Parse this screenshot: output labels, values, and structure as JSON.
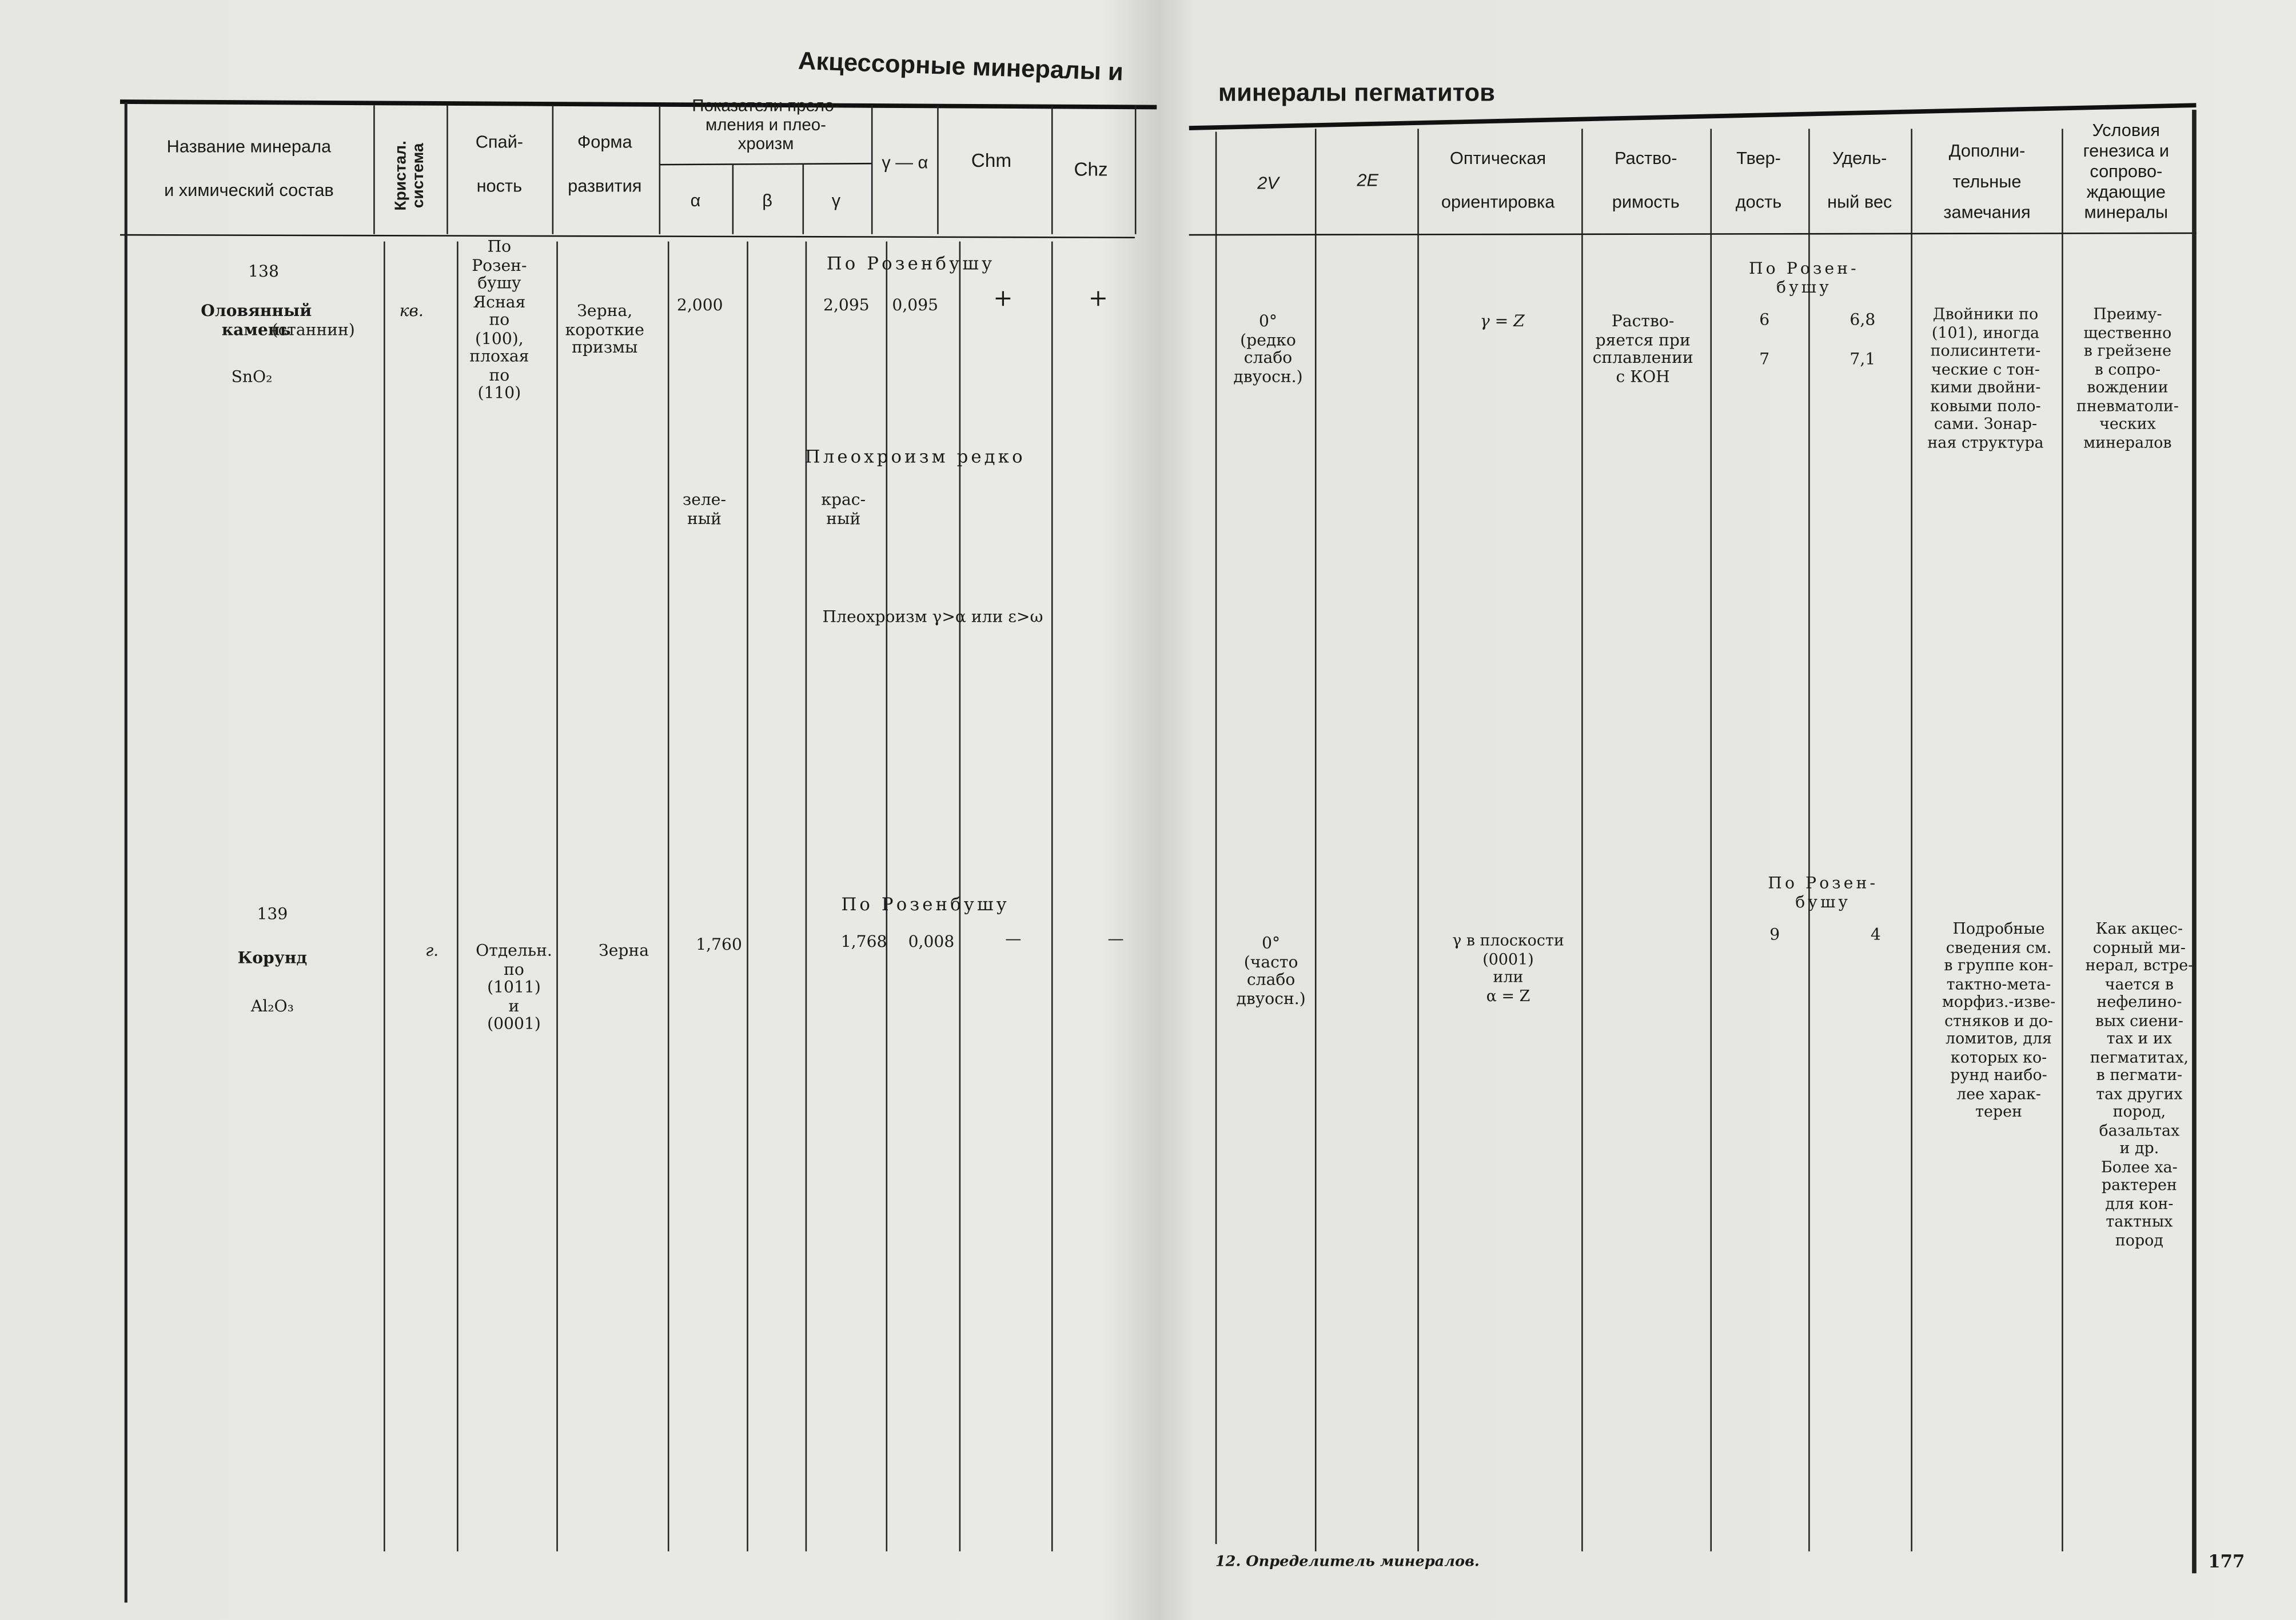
{
  "left_page": {
    "title": "Акцессорные минералы и",
    "headers": {
      "name": "Название минерала\n\nи химический состав",
      "crystal_system": "Кристал.\nсистема",
      "cleavage": "Спай-\n\nность",
      "habit": "Форма\n\nразвития",
      "refraction_group": "Показатели прело-\nмления и плео-\nхроизм",
      "alpha": "α",
      "beta": "β",
      "gamma": "γ",
      "birefringence": "γ — α",
      "chm": "Chm",
      "chz": "Chz"
    },
    "rows": [
      {
        "number": "138",
        "name": "Оловянный\nкамень",
        "name_alt": "(станнин)",
        "formula": "SnO₂",
        "system": "кв.",
        "cleavage": "По\nРозен-\nбушу\nЯсная\nпо\n(100),\nплохая\nпо\n(110)",
        "habit": "Зерна,\nкороткие\nпризмы",
        "source_note": "По Розенбушу",
        "alpha": "2,000",
        "gamma": "2,095",
        "birefringence": "0,095",
        "chm": "+",
        "chz": "+",
        "pleochroism_note": "Плеохроизм редко",
        "pleochroism_alpha": "зеле-\nный",
        "pleochroism_gamma": "крас-\nный",
        "pleochroism_note2": "Плеохроизм γ>α или ε>ω"
      },
      {
        "number": "139",
        "name": "Корунд",
        "formula": "Al₂O₃",
        "system": "г.",
        "cleavage": "Отдельн.\nпо\n(1011)\nи\n(0001)",
        "habit": "Зерна",
        "source_note": "По Розенбушу",
        "alpha": "1,760",
        "gamma": "1,768",
        "birefringence": "0,008",
        "chm": "—",
        "chz": "—"
      }
    ],
    "footer": "12. Определитель минералов."
  },
  "right_page": {
    "title": "минералы пегматитов",
    "headers": {
      "2v": "2V",
      "2e": "2E",
      "optical_orientation": "Оптическая\n\nориентировка",
      "solubility": "Раство-\n\nримость",
      "hardness": "Твер-\n\nдость",
      "specific_gravity": "Удель-\n\nный вес",
      "remarks": "Дополни-\nтельные\nзамечания",
      "genesis": "Условия\nгенезиса и\nсопрово-\nждающие\nминералы"
    },
    "rows": [
      {
        "2v": "0°\n(редко\nслабо\nдвуосн.)",
        "optical_orientation": "γ = Z",
        "solubility": "Раство-\nряется при\nсплавлении\nс КОН",
        "source_note": "По Розен-\nбушу",
        "hardness": "6\n\n7",
        "specific_gravity": "6,8\n\n7,1",
        "remarks": "Двойники по\n(101), иногда\nполисинтети-\nческие с тон-\nкими двойни-\nковыми поло-\nсами. Зонар-\nная структура",
        "genesis": "Преиму-\nщественно\nв грейзене\nв сопро-\nвождении\nпневматоли-\nческих\nминералов"
      },
      {
        "2v": "0°\n(часто\nслабо\nдвуосн.)",
        "optical_orientation": "γ в плоскости\n(0001)\nили\nα = Z",
        "source_note": "По Розен-\nбушу",
        "hardness": "9",
        "specific_gravity": "4",
        "remarks": "Подробные\nсведения см.\nв группе кон-\nтактно-мета-\nморфиз.-изве-\nстняков и до-\nломитов, для\nкоторых ко-\nрунд наибо-\nлее харак-\nтерен",
        "genesis": "Как акцес-\nсорный ми-\nнерал, встре-\nчается в\nнефелино-\nвых сиени-\nтах и их\nпегматитах,\nв пегмати-\nтах других\nпород,\nбазальтах\nи др.\nБолее ха-\nрактерен\nдля кон-\nтактных\nпород"
      }
    ],
    "page_number": "177"
  }
}
